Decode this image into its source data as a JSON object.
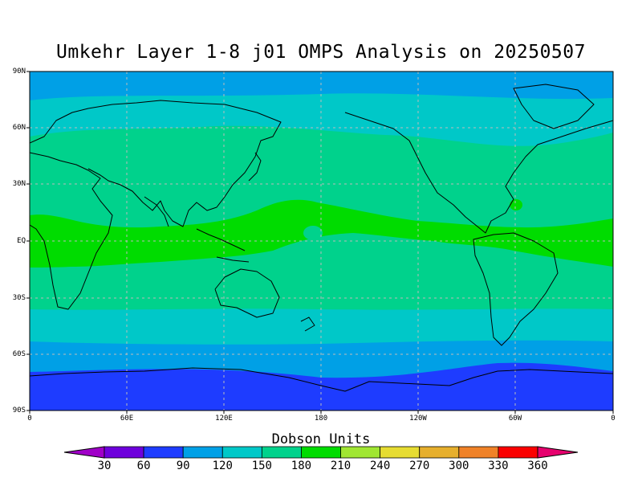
{
  "title": "Umkehr Layer 1-8 j01 OMPS Analysis on 20250507",
  "y_axis_labels": [
    "90N",
    "60N",
    "30N",
    "EQ",
    "30S",
    "60S",
    "90S"
  ],
  "x_axis_labels": [
    "0",
    "60E",
    "120E",
    "180",
    "120W",
    "60W",
    "0"
  ],
  "colorbar": {
    "title": "Dobson Units",
    "labels": [
      "30",
      "60",
      "90",
      "120",
      "150",
      "180",
      "210",
      "240",
      "270",
      "300",
      "330",
      "360"
    ],
    "colors": [
      "#a000c8",
      "#6e00dc",
      "#1e3cff",
      "#00a0e6",
      "#00c8c8",
      "#00d28c",
      "#00dc00",
      "#a0e632",
      "#e6dc32",
      "#e6af2d",
      "#f08228",
      "#fa0000",
      "#e6006e"
    ]
  },
  "chart_data": {
    "type": "heatmap",
    "title": "Umkehr Layer 1-8 j01 OMPS Analysis on 20250507",
    "units": "Dobson Units",
    "x_ticks": [
      "0",
      "60E",
      "120E",
      "180",
      "120W",
      "60W",
      "0"
    ],
    "y_ticks": [
      "90N",
      "60N",
      "30N",
      "EQ",
      "30S",
      "60S",
      "90S"
    ],
    "xlim": [
      0,
      360
    ],
    "ylim": [
      -90,
      90
    ],
    "contour_levels": [
      30,
      60,
      90,
      120,
      150,
      180,
      210,
      240,
      270,
      300,
      330,
      360
    ],
    "zonal_bands": [
      {
        "lat_range": [
          75,
          90
        ],
        "range_du": [
          90,
          120
        ]
      },
      {
        "lat_range": [
          57,
          75
        ],
        "range_du": [
          120,
          150
        ]
      },
      {
        "lat_range": [
          13,
          57
        ],
        "range_du": [
          150,
          180
        ]
      },
      {
        "lat_range": [
          -13,
          13
        ],
        "range_du": [
          180,
          210
        ]
      },
      {
        "lat_range": [
          -35,
          -13
        ],
        "range_du": [
          150,
          180
        ]
      },
      {
        "lat_range": [
          -57,
          -35
        ],
        "range_du": [
          120,
          150
        ]
      },
      {
        "lat_range": [
          -70,
          -57
        ],
        "range_du": [
          90,
          120
        ]
      },
      {
        "lat_range": [
          -90,
          -70
        ],
        "range_du": [
          60,
          90
        ]
      }
    ]
  }
}
